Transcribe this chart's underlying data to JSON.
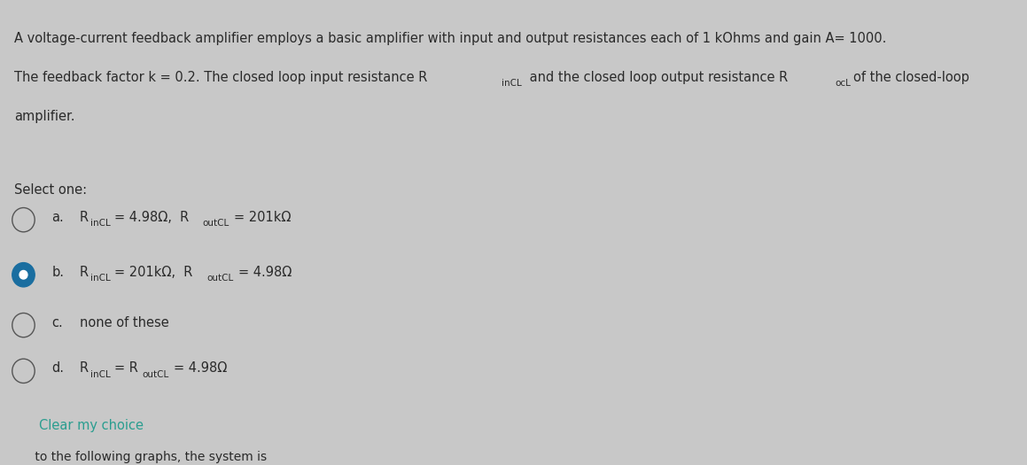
{
  "bg_color": "#c8c8c8",
  "text_color": "#2a2a2a",
  "teal_color": "#2a9d8f",
  "select_label": "Select one:",
  "clear_text": "Clear my choice",
  "bottom_text": "         to the following graphs, the system is",
  "figsize": [
    11.59,
    5.25
  ],
  "dpi": 100,
  "q_line1": "A voltage-current feedback amplifier employs a basic amplifier with input and output resistances each of 1 kOhms and gain A= 1000.",
  "q_line2": "The feedback factor k = 0.2. The closed loop input resistance R",
  "q_line2b": "inCL",
  "q_line2c": " and the closed loop output resistance R",
  "q_line2d": "ocL",
  "q_line2e": "of the closed-loop",
  "q_line3": "amplifier.",
  "option_a_pre": "R",
  "option_a_sub1": "inCL",
  "option_a_mid": "= 4.98Ω,  R",
  "option_a_sub2": "outCL",
  "option_a_post": "= 201kΩ",
  "option_b_pre": "R",
  "option_b_sub1": "inCL",
  "option_b_mid": "= 201kΩ,  R",
  "option_b_sub2": "outCL",
  "option_b_post": "= 4.98Ω",
  "option_c": "none of these",
  "option_d_pre": "R",
  "option_d_sub1": "inCL",
  "option_d_mid": "= R",
  "option_d_sub2": "outCL",
  "option_d_post": "= 4.98Ω"
}
